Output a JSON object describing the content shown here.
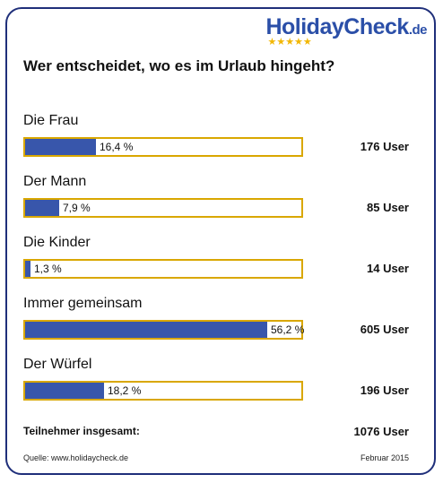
{
  "logo": {
    "holiday": "Holiday",
    "check": "Check",
    "tld": ".de",
    "stars": "★★★★★"
  },
  "chart_data": {
    "type": "bar",
    "orientation": "horizontal",
    "title": "Wer entscheidet, wo es im Urlaub hingeht?",
    "categories": [
      "Die Frau",
      "Der Mann",
      "Die Kinder",
      "Immer gemeinsam",
      "Der Würfel"
    ],
    "values": [
      16.4,
      7.9,
      1.3,
      56.2,
      18.2
    ],
    "value_labels": [
      "16,4 %",
      "7,9 %",
      "1,3 %",
      "56,2 %",
      "18,2 %"
    ],
    "counts": [
      "176 User",
      "85 User",
      "14 User",
      "605 User",
      "196 User"
    ],
    "xlim": [
      0,
      64
    ],
    "colors": {
      "bar": "#3856ab",
      "bar_border": "#d9a700"
    }
  },
  "total": {
    "label": "Teilnehmer insgesamt:",
    "value": "1076 User"
  },
  "footer": {
    "source": "Quelle: www.holidaycheck.de",
    "date": "Februar 2015"
  }
}
